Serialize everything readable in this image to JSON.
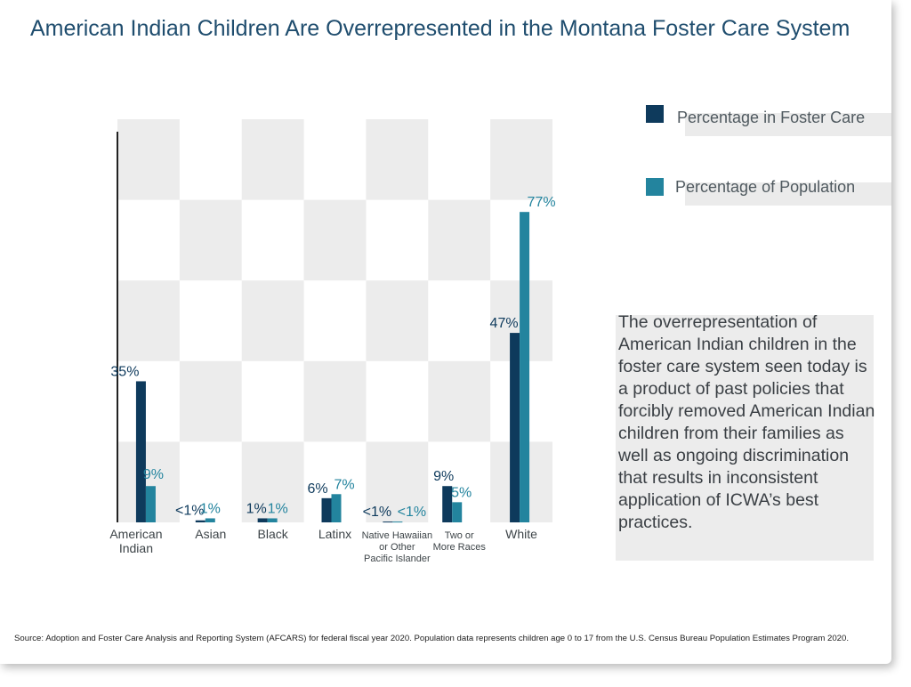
{
  "title": "American Indian Children Are Overrepresented in the Montana Foster Care System",
  "legend": [
    {
      "label": "Percentage in Foster Care",
      "color": "#0e3a5c"
    },
    {
      "label": "Percentage of Population",
      "color": "#23849e"
    }
  ],
  "annotation": "The overrepresentation of American Indian children in the foster care system seen today is a product of past policies that forcibly removed American Indian children from their families as well as ongoing discrimination that results in inconsistent application of ICWA’s best practices.",
  "source": "Source: Adoption and Foster Care Analysis and Reporting System (AFCARS) for federal fiscal year 2020. Population data represents children age 0 to 17 from the U.S. Census Bureau Population Estimates Program 2020.",
  "chart_data": {
    "type": "bar",
    "categories": [
      [
        "American",
        "Indian"
      ],
      [
        "Asian"
      ],
      [
        "Black"
      ],
      [
        "Latinx"
      ],
      [
        "Native Hawaiian",
        "or Other",
        "Pacific Islander"
      ],
      [
        "Two or",
        "More Races"
      ],
      [
        "White"
      ]
    ],
    "series": [
      {
        "name": "Percentage in Foster Care",
        "values": [
          35,
          0.5,
          1,
          6,
          0.2,
          9,
          47
        ],
        "labels": [
          "35%",
          "<1%",
          "1%",
          "6%",
          "<1%",
          "9%",
          "47%"
        ],
        "color": "#0e3a5c"
      },
      {
        "name": "Percentage of Population",
        "values": [
          9,
          1,
          1,
          7,
          0.2,
          5,
          77
        ],
        "labels": [
          "9%",
          "1%",
          "1%",
          "7%",
          "<1%",
          "5%",
          "77%"
        ],
        "color": "#23849e"
      }
    ],
    "ylim": [
      0,
      100
    ],
    "grid": "checkerboard",
    "legend_position": "top-right"
  }
}
